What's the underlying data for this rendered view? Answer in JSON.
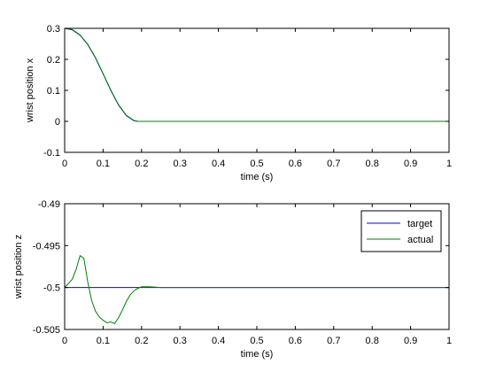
{
  "chart_data": [
    {
      "type": "line",
      "xlabel": "time (s)",
      "ylabel": "wrist position x",
      "xlim": [
        0,
        1
      ],
      "ylim": [
        -0.1,
        0.3
      ],
      "xticks": [
        0,
        0.1,
        0.2,
        0.3,
        0.4,
        0.5,
        0.6,
        0.7,
        0.8,
        0.9,
        1
      ],
      "xtick_labels": [
        "0",
        "0.1",
        "0.2",
        "0.3",
        "0.4",
        "0.5",
        "0.6",
        "0.7",
        "0.8",
        "0.9",
        "1"
      ],
      "yticks": [
        -0.1,
        0,
        0.1,
        0.2,
        0.3
      ],
      "ytick_labels": [
        "-0.1",
        "0",
        "0.1",
        "0.2",
        "0.3"
      ],
      "grid": false,
      "legend": false,
      "series": [
        {
          "color": "#0000ff",
          "x": [
            0,
            0.02,
            0.04,
            0.06,
            0.08,
            0.1,
            0.12,
            0.14,
            0.16,
            0.18,
            0.19,
            0.2,
            0.3,
            0.4,
            0.5,
            0.6,
            0.7,
            0.8,
            0.9,
            1
          ],
          "y": [
            0.3,
            0.295,
            0.278,
            0.248,
            0.205,
            0.153,
            0.1,
            0.053,
            0.019,
            0.002,
            0,
            0,
            0,
            0,
            0,
            0,
            0,
            0,
            0,
            0
          ]
        },
        {
          "color": "#008000",
          "x": [
            0,
            0.02,
            0.04,
            0.06,
            0.08,
            0.1,
            0.12,
            0.14,
            0.16,
            0.18,
            0.19,
            0.2,
            0.3,
            0.4,
            0.5,
            0.6,
            0.7,
            0.8,
            0.9,
            1
          ],
          "y": [
            0.3,
            0.296,
            0.279,
            0.249,
            0.206,
            0.154,
            0.101,
            0.054,
            0.02,
            0.003,
            0,
            0,
            0,
            0,
            0,
            0,
            0,
            0,
            0,
            0
          ]
        }
      ]
    },
    {
      "type": "line",
      "xlabel": "time (s)",
      "ylabel": "wrist position z",
      "xlim": [
        0,
        1
      ],
      "ylim": [
        -0.505,
        -0.49
      ],
      "xticks": [
        0,
        0.1,
        0.2,
        0.3,
        0.4,
        0.5,
        0.6,
        0.7,
        0.8,
        0.9,
        1
      ],
      "xtick_labels": [
        "0",
        "0.1",
        "0.2",
        "0.3",
        "0.4",
        "0.5",
        "0.6",
        "0.7",
        "0.8",
        "0.9",
        "1"
      ],
      "yticks": [
        -0.505,
        -0.5,
        -0.495,
        -0.49
      ],
      "ytick_labels": [
        "-0.505",
        "-0.5",
        "-0.495",
        "-0.49"
      ],
      "grid": false,
      "legend": "top-right",
      "series": [
        {
          "name": "target",
          "color": "#0000ff",
          "x": [
            0,
            1
          ],
          "y": [
            -0.5,
            -0.5
          ]
        },
        {
          "name": "actual",
          "color": "#008000",
          "x": [
            0,
            0.01,
            0.02,
            0.03,
            0.04,
            0.05,
            0.06,
            0.07,
            0.08,
            0.09,
            0.1,
            0.11,
            0.12,
            0.13,
            0.14,
            0.15,
            0.16,
            0.17,
            0.18,
            0.19,
            0.2,
            0.22,
            0.25,
            0.3,
            0.35,
            0.4,
            0.5,
            0.6,
            0.7,
            0.8,
            0.9,
            1
          ],
          "y": [
            -0.5,
            -0.4995,
            -0.499,
            -0.4978,
            -0.4962,
            -0.4965,
            -0.4993,
            -0.5015,
            -0.5028,
            -0.5035,
            -0.5039,
            -0.5042,
            -0.5041,
            -0.5043,
            -0.5036,
            -0.5027,
            -0.5017,
            -0.5009,
            -0.5004,
            -0.5001,
            -0.4999,
            -0.4999,
            -0.5,
            -0.5,
            -0.5,
            -0.5,
            -0.5,
            -0.5,
            -0.5,
            -0.5,
            -0.5,
            -0.5
          ]
        }
      ]
    }
  ]
}
